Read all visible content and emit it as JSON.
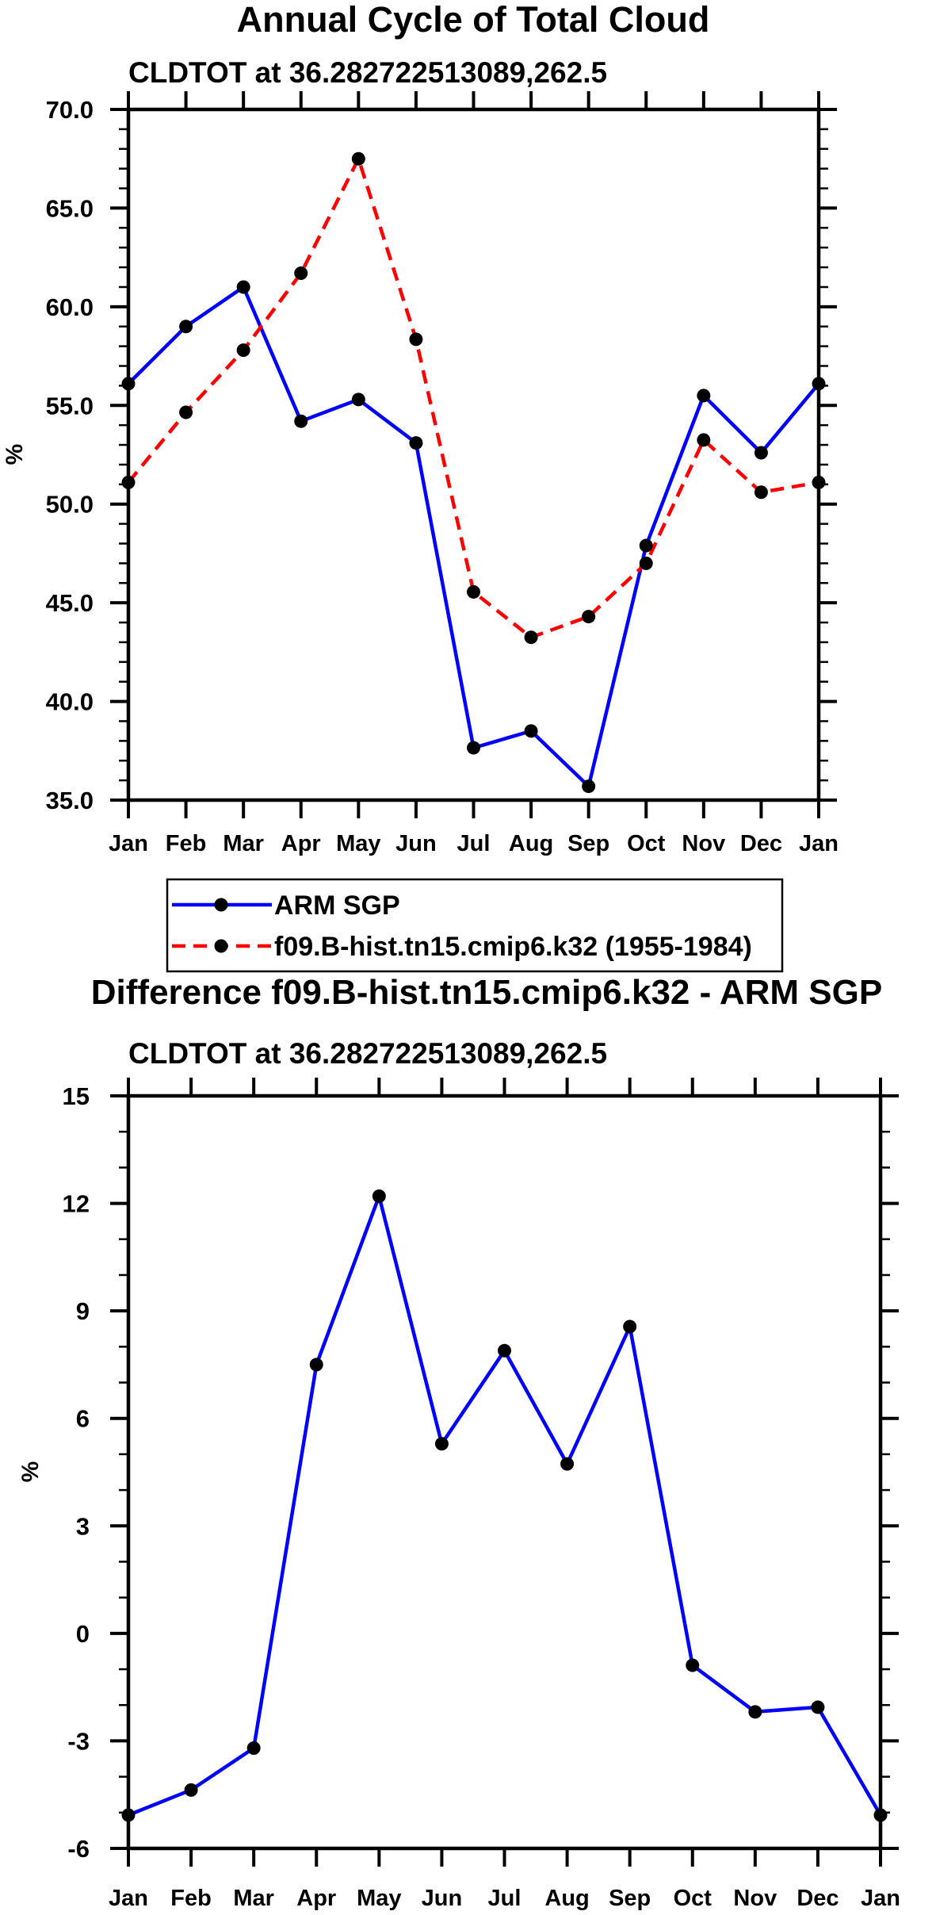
{
  "chart_data": [
    {
      "type": "line",
      "title": "Annual Cycle of Total Cloud",
      "subtitle": "CLDTOT at 36.282722513089,262.5",
      "xlabel": "",
      "ylabel": "%",
      "categories": [
        "Jan",
        "Feb",
        "Mar",
        "Apr",
        "May",
        "Jun",
        "Jul",
        "Aug",
        "Sep",
        "Oct",
        "Nov",
        "Dec",
        "Jan"
      ],
      "ylim": [
        35,
        70
      ],
      "yticks": [
        35,
        40,
        45,
        50,
        55,
        60,
        65,
        70
      ],
      "ytick_labels": [
        "35.0",
        "40.0",
        "45.0",
        "50.0",
        "55.0",
        "60.0",
        "65.0",
        "70.0"
      ],
      "minor_step": 1,
      "grid": false,
      "series": [
        {
          "name": "ARM SGP",
          "color": "#0000ff",
          "dash": "solid",
          "values": [
            56.1,
            59.0,
            61.0,
            54.2,
            55.3,
            53.1,
            37.65,
            38.5,
            35.7,
            47.9,
            55.5,
            52.6,
            56.1
          ]
        },
        {
          "name": "f09.B-hist.tn15.cmip6.k32 (1955-1984)",
          "color": "#ff0000",
          "dash": "dashed",
          "values": [
            51.1,
            54.65,
            57.8,
            61.7,
            67.5,
            58.35,
            45.55,
            43.25,
            44.3,
            47.0,
            53.25,
            50.6,
            51.1
          ]
        }
      ],
      "legend": {
        "placement": "below",
        "entries": [
          "ARM SGP",
          "f09.B-hist.tn15.cmip6.k32 (1955-1984)"
        ]
      }
    },
    {
      "type": "line",
      "title": "Difference f09.B-hist.tn15.cmip6.k32 - ARM SGP",
      "subtitle": "CLDTOT at 36.282722513089,262.5",
      "xlabel": "",
      "ylabel": "%",
      "categories": [
        "Jan",
        "Feb",
        "Mar",
        "Apr",
        "May",
        "Jun",
        "Jul",
        "Aug",
        "Sep",
        "Oct",
        "Nov",
        "Dec",
        "Jan"
      ],
      "ylim": [
        -6,
        15
      ],
      "yticks": [
        -6,
        -3,
        0,
        3,
        6,
        9,
        12,
        15
      ],
      "ytick_labels": [
        "-6",
        "-3",
        "0",
        "3",
        "6",
        "9",
        "12",
        "15"
      ],
      "minor_step": 1,
      "grid": false,
      "series": [
        {
          "name": "Difference",
          "color": "#0000ff",
          "dash": "solid",
          "values": [
            -5.07,
            -4.37,
            -3.2,
            7.5,
            12.2,
            5.29,
            7.89,
            4.73,
            8.56,
            -0.89,
            -2.19,
            -2.06,
            -5.07
          ]
        }
      ]
    }
  ]
}
